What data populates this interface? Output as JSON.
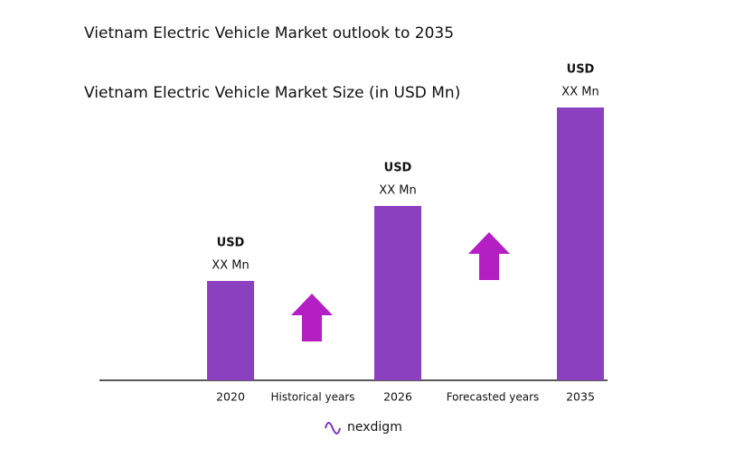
{
  "chart_data": {
    "type": "bar",
    "title": "Vietnam Electric Vehicle Market outlook to 2035",
    "subtitle": "Vietnam Electric Vehicle Market Size (in USD Mn)",
    "categories": [
      "2020",
      "2026",
      "2035"
    ],
    "values": [
      110,
      193,
      302
    ],
    "value_labels": [
      [
        "USD",
        "XX Mn"
      ],
      [
        "USD",
        "XX Mn"
      ],
      [
        "USD",
        "XX Mn"
      ]
    ],
    "color": "#8a40bf",
    "annotations": [
      "Historical years",
      "Forecasted years"
    ],
    "logo": "nexdigm"
  }
}
